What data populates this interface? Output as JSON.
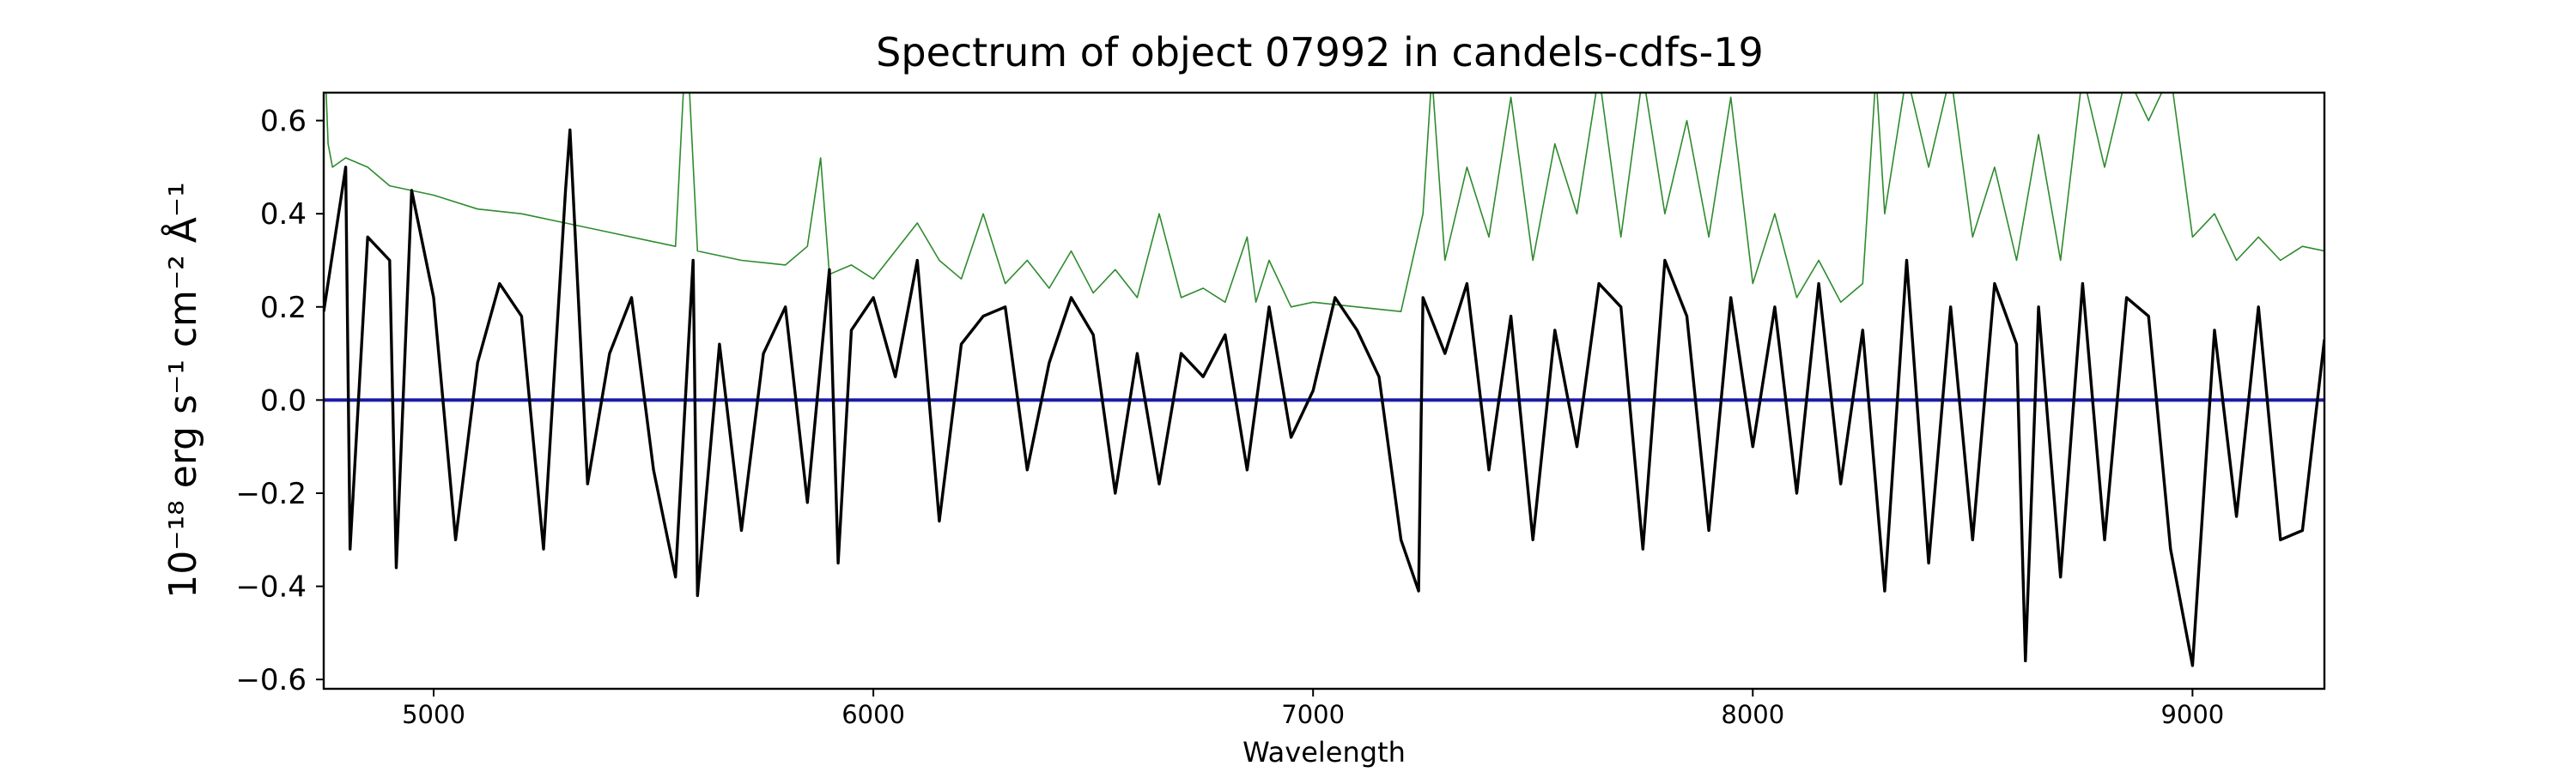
{
  "chart_data": {
    "type": "line",
    "title": "Spectrum of object 07992 in candels-cdfs-19",
    "xlabel": "Wavelength",
    "ylabel": "10⁻¹⁸ erg s⁻¹ cm⁻² Å⁻¹",
    "xlim": [
      4750,
      9300
    ],
    "ylim": [
      -0.62,
      0.66
    ],
    "x_ticks": [
      5000,
      6000,
      7000,
      8000,
      9000
    ],
    "y_ticks": [
      -0.6,
      -0.4,
      -0.2,
      0.0,
      0.2,
      0.4,
      0.6
    ],
    "y_tick_labels": [
      "−0.6",
      "−0.4",
      "−0.2",
      "0.0",
      "0.2",
      "0.4",
      "0.6"
    ],
    "grid": false,
    "colors": {
      "flux": "#000000",
      "error": "#2e8b2e",
      "zero": "#1a1aa6"
    },
    "series": [
      {
        "role": "flux",
        "x": [
          4750,
          4800,
          4810,
          4850,
          4900,
          4915,
          4950,
          5000,
          5050,
          5100,
          5150,
          5200,
          5250,
          5300,
          5310,
          5350,
          5400,
          5450,
          5500,
          5550,
          5590,
          5600,
          5650,
          5700,
          5750,
          5800,
          5850,
          5900,
          5920,
          5950,
          6000,
          6050,
          6100,
          6150,
          6200,
          6250,
          6300,
          6350,
          6400,
          6450,
          6500,
          6550,
          6600,
          6650,
          6700,
          6750,
          6800,
          6850,
          6900,
          6950,
          7000,
          7050,
          7100,
          7150,
          7200,
          7240,
          7250,
          7300,
          7350,
          7400,
          7450,
          7500,
          7550,
          7600,
          7650,
          7700,
          7750,
          7800,
          7850,
          7900,
          7950,
          8000,
          8050,
          8100,
          8150,
          8200,
          8250,
          8300,
          8350,
          8400,
          8450,
          8500,
          8550,
          8600,
          8620,
          8650,
          8700,
          8750,
          8800,
          8850,
          8900,
          8950,
          9000,
          9050,
          9100,
          9150,
          9200,
          9250,
          9300
        ],
        "y": [
          0.19,
          0.5,
          -0.32,
          0.35,
          0.3,
          -0.36,
          0.45,
          0.22,
          -0.3,
          0.08,
          0.25,
          0.18,
          -0.32,
          0.45,
          0.58,
          -0.18,
          0.1,
          0.22,
          -0.15,
          -0.38,
          0.3,
          -0.42,
          0.12,
          -0.28,
          0.1,
          0.2,
          -0.22,
          0.28,
          -0.35,
          0.15,
          0.22,
          0.05,
          0.3,
          -0.26,
          0.12,
          0.18,
          0.2,
          -0.15,
          0.08,
          0.22,
          0.14,
          -0.2,
          0.1,
          -0.18,
          0.1,
          0.05,
          0.14,
          -0.15,
          0.2,
          -0.08,
          0.02,
          0.22,
          0.15,
          0.05,
          -0.3,
          -0.41,
          0.22,
          0.1,
          0.25,
          -0.15,
          0.18,
          -0.3,
          0.15,
          -0.1,
          0.25,
          0.2,
          -0.32,
          0.3,
          0.18,
          -0.28,
          0.22,
          -0.1,
          0.2,
          -0.2,
          0.25,
          -0.18,
          0.15,
          -0.41,
          0.3,
          -0.35,
          0.2,
          -0.3,
          0.25,
          0.12,
          -0.56,
          0.2,
          -0.38,
          0.25,
          -0.3,
          0.22,
          0.18,
          -0.32,
          -0.57,
          0.15,
          -0.25,
          0.2,
          -0.3,
          -0.28,
          0.13
        ]
      },
      {
        "role": "error",
        "x": [
          4750,
          4760,
          4770,
          4800,
          4850,
          4900,
          5000,
          5100,
          5200,
          5300,
          5400,
          5500,
          5550,
          5570,
          5580,
          5600,
          5700,
          5800,
          5850,
          5880,
          5900,
          5950,
          6000,
          6100,
          6150,
          6200,
          6250,
          6300,
          6350,
          6400,
          6450,
          6500,
          6550,
          6600,
          6650,
          6700,
          6750,
          6800,
          6850,
          6870,
          6900,
          6950,
          7000,
          7100,
          7200,
          7250,
          7270,
          7300,
          7350,
          7400,
          7450,
          7500,
          7550,
          7600,
          7650,
          7700,
          7750,
          7800,
          7850,
          7900,
          7950,
          8000,
          8050,
          8100,
          8150,
          8200,
          8250,
          8280,
          8300,
          8350,
          8400,
          8450,
          8500,
          8550,
          8600,
          8650,
          8700,
          8750,
          8800,
          8850,
          8900,
          8950,
          9000,
          9050,
          9100,
          9150,
          9200,
          9250,
          9300
        ],
        "y": [
          0.8,
          0.55,
          0.5,
          0.52,
          0.5,
          0.46,
          0.44,
          0.41,
          0.4,
          0.38,
          0.36,
          0.34,
          0.33,
          0.7,
          0.7,
          0.32,
          0.3,
          0.29,
          0.33,
          0.52,
          0.27,
          0.29,
          0.26,
          0.38,
          0.3,
          0.26,
          0.4,
          0.25,
          0.3,
          0.24,
          0.32,
          0.23,
          0.28,
          0.22,
          0.4,
          0.22,
          0.24,
          0.21,
          0.35,
          0.21,
          0.3,
          0.2,
          0.21,
          0.2,
          0.19,
          0.4,
          0.7,
          0.3,
          0.5,
          0.35,
          0.65,
          0.3,
          0.55,
          0.4,
          0.7,
          0.35,
          0.7,
          0.4,
          0.6,
          0.35,
          0.65,
          0.25,
          0.4,
          0.22,
          0.3,
          0.21,
          0.25,
          0.7,
          0.4,
          0.7,
          0.5,
          0.7,
          0.35,
          0.5,
          0.3,
          0.57,
          0.3,
          0.7,
          0.5,
          0.7,
          0.6,
          0.7,
          0.35,
          0.4,
          0.3,
          0.35,
          0.3,
          0.33,
          0.32
        ]
      },
      {
        "role": "zero",
        "x": [
          4750,
          9300
        ],
        "y": [
          0.0,
          0.0
        ]
      }
    ]
  }
}
